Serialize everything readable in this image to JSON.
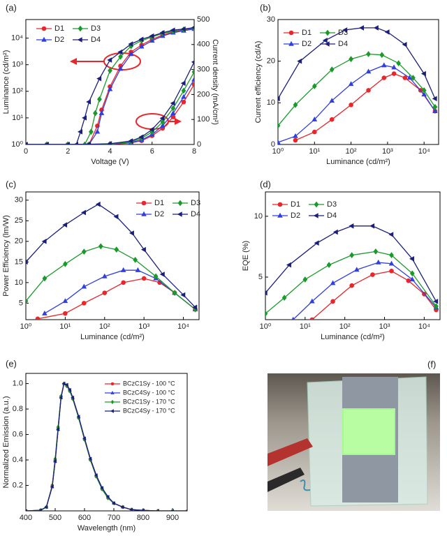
{
  "chart_data": [
    {
      "type": "line",
      "panel_label": "(a)",
      "xlabel": "Voltage (V)",
      "ylabel": "Luminance (cd/m²)",
      "y2label": "Current density (mA/cm²)",
      "xlim": [
        0,
        8
      ],
      "xticks": [
        0,
        2,
        4,
        6,
        8
      ],
      "ylim": [
        1,
        50000
      ],
      "yscale": "log",
      "yticks": [
        {
          "value": 1,
          "label": "10⁰"
        },
        {
          "value": 10,
          "label": "10¹"
        },
        {
          "value": 100,
          "label": "10²"
        },
        {
          "value": 1000,
          "label": "10³"
        },
        {
          "value": 10000,
          "label": "10⁴"
        }
      ],
      "y2lim": [
        0,
        500
      ],
      "y2ticks": [
        0,
        100,
        200,
        300,
        400,
        500
      ],
      "series": [
        {
          "name": "D1",
          "color": "#e8262b",
          "marker": "circle",
          "x": [
            0,
            1,
            2,
            3,
            3.4,
            3.6,
            4,
            4.5,
            5,
            5.5,
            6,
            6.5,
            7,
            7.5,
            8
          ],
          "values": [
            1,
            1,
            1,
            1,
            5,
            20,
            150,
            900,
            3000,
            5500,
            9000,
            13000,
            17000,
            20000,
            23000
          ]
        },
        {
          "name": "D2",
          "color": "#2f3fe0",
          "marker": "triangle-up",
          "x": [
            0,
            1,
            2,
            3,
            3.4,
            3.6,
            4,
            4.5,
            5,
            5.5,
            6,
            6.5,
            7,
            7.5,
            8
          ],
          "values": [
            1,
            1,
            1,
            1,
            3,
            15,
            120,
            700,
            2500,
            4800,
            8000,
            12000,
            16000,
            19000,
            22000
          ]
        },
        {
          "name": "D3",
          "color": "#1a9a2a",
          "marker": "diamond",
          "x": [
            0,
            1,
            2,
            2.8,
            3.1,
            3.3,
            3.5,
            4,
            4.5,
            5,
            5.5,
            6,
            6.5,
            7,
            7.5,
            8
          ],
          "values": [
            1,
            1,
            1,
            1,
            3,
            15,
            50,
            600,
            2000,
            5000,
            8000,
            11000,
            15000,
            18000,
            21000,
            24000
          ]
        },
        {
          "name": "D4",
          "color": "#1b1f7a",
          "marker": "triangle-left",
          "x": [
            0,
            1,
            2,
            2.4,
            2.6,
            2.8,
            3,
            3.5,
            4,
            4.5,
            5,
            5.5,
            6,
            6.5,
            7,
            7.5,
            8
          ],
          "values": [
            1,
            1,
            1,
            1,
            3,
            10,
            40,
            300,
            1500,
            3000,
            6000,
            9000,
            12000,
            16000,
            20000,
            22000,
            25000
          ]
        },
        {
          "axis": "y2",
          "color": "#e8262b",
          "marker": "circle",
          "x": [
            0,
            1,
            2,
            3,
            4,
            5,
            5.5,
            6,
            6.5,
            7,
            7.5,
            8
          ],
          "values": [
            0,
            0,
            0,
            0,
            1,
            6,
            15,
            35,
            65,
            110,
            170,
            240
          ]
        },
        {
          "axis": "y2",
          "color": "#2f3fe0",
          "marker": "triangle-up",
          "x": [
            0,
            1,
            2,
            3,
            4,
            5,
            5.5,
            6,
            6.5,
            7,
            7.5,
            8
          ],
          "values": [
            0,
            0,
            0,
            0,
            1,
            8,
            18,
            40,
            75,
            125,
            190,
            260
          ]
        },
        {
          "axis": "y2",
          "color": "#1a9a2a",
          "marker": "diamond",
          "x": [
            0,
            1,
            2,
            3,
            4,
            5,
            5.5,
            6,
            6.5,
            7,
            7.5,
            8
          ],
          "values": [
            0,
            0,
            0,
            0,
            2,
            10,
            25,
            50,
            90,
            145,
            215,
            290
          ]
        },
        {
          "axis": "y2",
          "color": "#1b1f7a",
          "marker": "triangle-left",
          "x": [
            0,
            1,
            2,
            3,
            4,
            5,
            5.5,
            6,
            6.5,
            7,
            7.5,
            8
          ],
          "values": [
            0,
            0,
            0,
            1,
            3,
            14,
            30,
            60,
            105,
            165,
            245,
            330
          ]
        }
      ]
    },
    {
      "type": "line",
      "panel_label": "(b)",
      "xlabel": "Luminance (cd/m²)",
      "ylabel": "Current efficiency (cd/A)",
      "xlim": [
        1,
        25000
      ],
      "xscale": "log",
      "xticks": [
        {
          "value": 1,
          "label": "10⁰"
        },
        {
          "value": 10,
          "label": "10¹"
        },
        {
          "value": 100,
          "label": "10²"
        },
        {
          "value": 1000,
          "label": "10³"
        },
        {
          "value": 10000,
          "label": "10⁴"
        }
      ],
      "ylim": [
        0,
        30
      ],
      "yticks": [
        0,
        10,
        20,
        30
      ],
      "series": [
        {
          "name": "D1",
          "color": "#e8262b",
          "marker": "circle",
          "x": [
            3,
            10,
            30,
            100,
            300,
            800,
            1500,
            3000,
            8000,
            20000
          ],
          "values": [
            1,
            3,
            6,
            9.5,
            13,
            16,
            17,
            16,
            13,
            8
          ]
        },
        {
          "name": "D2",
          "color": "#2f3fe0",
          "marker": "triangle-up",
          "x": [
            1,
            3,
            10,
            30,
            100,
            300,
            800,
            1500,
            4000,
            10000,
            20000
          ],
          "values": [
            0.5,
            2,
            6,
            10.5,
            14.5,
            17.5,
            19,
            18.5,
            16,
            12,
            8
          ]
        },
        {
          "name": "D3",
          "color": "#1a9a2a",
          "marker": "diamond",
          "x": [
            1,
            3,
            10,
            30,
            100,
            300,
            700,
            2000,
            5000,
            10000,
            20000
          ],
          "values": [
            4.5,
            9.5,
            14,
            18,
            20.5,
            21.7,
            21.5,
            19.5,
            16,
            13,
            9
          ]
        },
        {
          "name": "D4",
          "color": "#1b1f7a",
          "marker": "triangle-left",
          "x": [
            1,
            4,
            20,
            70,
            200,
            500,
            1000,
            3000,
            10000,
            20000
          ],
          "values": [
            11,
            20,
            25,
            27.5,
            28,
            28,
            27,
            24,
            17,
            11
          ]
        }
      ]
    },
    {
      "type": "line",
      "panel_label": "(c)",
      "xlabel": "Luminance (cd/m²)",
      "ylabel": "Power Efficiency (lm/W)",
      "xlim": [
        1,
        25000
      ],
      "xscale": "log",
      "xticks": [
        {
          "value": 1,
          "label": "10⁰"
        },
        {
          "value": 10,
          "label": "10¹"
        },
        {
          "value": 100,
          "label": "10²"
        },
        {
          "value": 1000,
          "label": "10³"
        },
        {
          "value": 10000,
          "label": "10⁴"
        }
      ],
      "ylim": [
        1,
        32
      ],
      "yticks": [
        5,
        10,
        15,
        20,
        25,
        30
      ],
      "series": [
        {
          "name": "D1",
          "color": "#e8262b",
          "marker": "circle",
          "x": [
            2,
            10,
            30,
            100,
            300,
            1000,
            2500,
            6000,
            20000
          ],
          "values": [
            1.2,
            2.5,
            5,
            7.5,
            10,
            11,
            10,
            7.5,
            3.5
          ]
        },
        {
          "name": "D2",
          "color": "#2f3fe0",
          "marker": "triangle-up",
          "x": [
            3,
            10,
            30,
            100,
            300,
            700,
            2000,
            6000,
            20000
          ],
          "values": [
            2.5,
            5.5,
            9,
            11.5,
            13,
            13,
            11,
            7.5,
            3.5
          ]
        },
        {
          "name": "D3",
          "color": "#1a9a2a",
          "marker": "diamond",
          "x": [
            1,
            3,
            10,
            30,
            80,
            200,
            600,
            2000,
            6000,
            20000
          ],
          "values": [
            5.5,
            11,
            14.5,
            17.5,
            18.8,
            18,
            15.5,
            11.5,
            7.5,
            3.5
          ]
        },
        {
          "name": "D4",
          "color": "#1b1f7a",
          "marker": "triangle-left",
          "x": [
            1,
            3,
            10,
            30,
            70,
            200,
            500,
            1000,
            3000,
            10000,
            20000
          ],
          "values": [
            15,
            20,
            24,
            27,
            29,
            26,
            22,
            18,
            12,
            7,
            4
          ]
        }
      ]
    },
    {
      "type": "line",
      "panel_label": "(d)",
      "xlabel": "Luminance (cd/m²)",
      "ylabel": "EQE (%)",
      "xlim": [
        1,
        25000
      ],
      "xscale": "log",
      "xticks": [
        {
          "value": 1,
          "label": "10⁰"
        },
        {
          "value": 10,
          "label": "10¹"
        },
        {
          "value": 100,
          "label": "10²"
        },
        {
          "value": 1000,
          "label": "10³"
        },
        {
          "value": 10000,
          "label": "10⁴"
        }
      ],
      "ylim": [
        1.5,
        12
      ],
      "yticks": [
        5,
        10
      ],
      "series": [
        {
          "name": "D1",
          "color": "#e8262b",
          "marker": "circle",
          "x": [
            15,
            50,
            150,
            500,
            1500,
            4000,
            10000,
            20000
          ],
          "values": [
            1.5,
            3,
            4.3,
            5.2,
            5.5,
            4.7,
            3.6,
            2.3
          ]
        },
        {
          "name": "D2",
          "color": "#2f3fe0",
          "marker": "triangle-up",
          "x": [
            5,
            15,
            50,
            200,
            700,
            1500,
            5000,
            20000
          ],
          "values": [
            1.5,
            3,
            4.5,
            5.6,
            6.2,
            6.1,
            4.8,
            2.5
          ]
        },
        {
          "name": "D3",
          "color": "#1a9a2a",
          "marker": "diamond",
          "x": [
            1,
            3,
            10,
            40,
            150,
            600,
            1500,
            5000,
            20000
          ],
          "values": [
            2,
            3.3,
            4.8,
            6,
            6.8,
            7.1,
            6.8,
            5.3,
            2.6
          ]
        },
        {
          "name": "D4",
          "color": "#1b1f7a",
          "marker": "triangle-left",
          "x": [
            1,
            4,
            20,
            60,
            150,
            500,
            1500,
            5000,
            20000
          ],
          "values": [
            3.7,
            6,
            7.8,
            8.7,
            9.2,
            9.2,
            8.5,
            6.5,
            3
          ]
        }
      ]
    },
    {
      "type": "line",
      "panel_label": "(e)",
      "xlabel": "Wavelength (nm)",
      "ylabel": "Normalized Emission (a.u.)",
      "xlim": [
        400,
        950
      ],
      "xticks": [
        400,
        500,
        600,
        700,
        800,
        900
      ],
      "ylim": [
        0,
        1.08
      ],
      "yticks": [
        0.2,
        0.4,
        0.6,
        0.8,
        {
          "value": 1,
          "label": "1.0"
        }
      ],
      "x": [
        400,
        450,
        470,
        490,
        500,
        510,
        520,
        530,
        540,
        550,
        560,
        580,
        600,
        620,
        640,
        660,
        680,
        700,
        730,
        760,
        800,
        850,
        900,
        950
      ],
      "series": [
        {
          "name": "BCzC1Sy - 100 °C",
          "color": "#e8262b",
          "marker": "circle",
          "values": [
            0,
            0.005,
            0.03,
            0.2,
            0.4,
            0.65,
            0.9,
            1.0,
            0.98,
            0.94,
            0.88,
            0.73,
            0.56,
            0.4,
            0.27,
            0.17,
            0.1,
            0.06,
            0.03,
            0.01,
            0.004,
            0,
            0,
            0
          ]
        },
        {
          "name": "BCzC4Sy - 100 °C",
          "color": "#2f3fe0",
          "marker": "triangle-up",
          "values": [
            0,
            0.005,
            0.03,
            0.19,
            0.39,
            0.64,
            0.89,
            1.0,
            0.99,
            0.95,
            0.89,
            0.74,
            0.57,
            0.41,
            0.28,
            0.18,
            0.11,
            0.06,
            0.03,
            0.01,
            0.004,
            0,
            0,
            0
          ]
        },
        {
          "name": "BCzC1Sy - 170 °C",
          "color": "#1a9a2a",
          "marker": "diamond",
          "values": [
            0,
            0.005,
            0.03,
            0.2,
            0.41,
            0.66,
            0.9,
            1.0,
            0.98,
            0.94,
            0.88,
            0.73,
            0.56,
            0.4,
            0.27,
            0.17,
            0.1,
            0.06,
            0.03,
            0.01,
            0.004,
            0,
            0,
            0
          ]
        },
        {
          "name": "BCzC4Sy - 170 °C",
          "color": "#1b1f7a",
          "marker": "triangle-left",
          "values": [
            0,
            0.005,
            0.03,
            0.19,
            0.39,
            0.64,
            0.89,
            1.0,
            0.99,
            0.95,
            0.89,
            0.74,
            0.57,
            0.41,
            0.28,
            0.18,
            0.11,
            0.06,
            0.03,
            0.01,
            0.004,
            0,
            0,
            0
          ]
        }
      ]
    }
  ],
  "photo": {
    "panel_label": "(f)"
  }
}
